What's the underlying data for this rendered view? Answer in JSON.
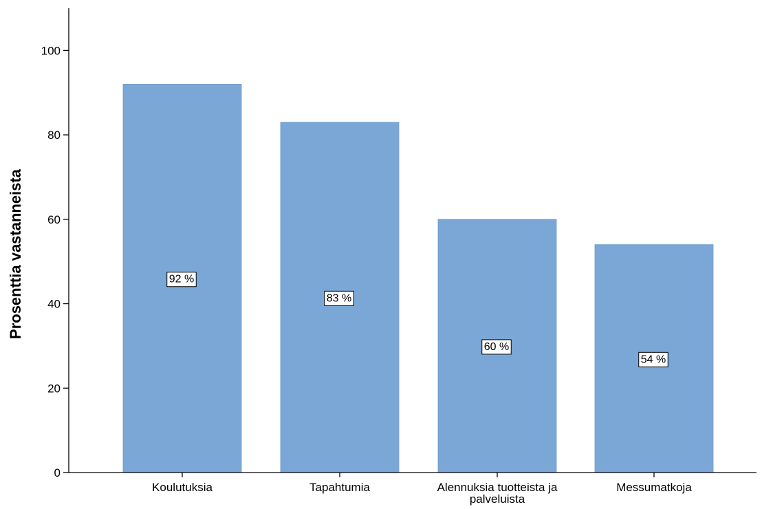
{
  "chart_data": {
    "type": "bar",
    "categories": [
      [
        "Koulutuksia"
      ],
      [
        "Tapahtumia"
      ],
      [
        "Alennuksia tuotteista ja",
        "palveluista"
      ],
      [
        "Messumatkoja"
      ]
    ],
    "values": [
      92,
      83,
      60,
      54
    ],
    "data_labels": [
      "92 %",
      "83 %",
      "60 %",
      "54 %"
    ],
    "title": "",
    "xlabel": "",
    "ylabel": "Prosenttia vastanneista",
    "ylim": [
      0,
      110
    ],
    "yticks": [
      0,
      20,
      40,
      60,
      80,
      100
    ],
    "grid": false,
    "bar_color": "#7ba7d6",
    "bar_edge_color": "#6f9cc9",
    "axis_color": "#000000"
  }
}
